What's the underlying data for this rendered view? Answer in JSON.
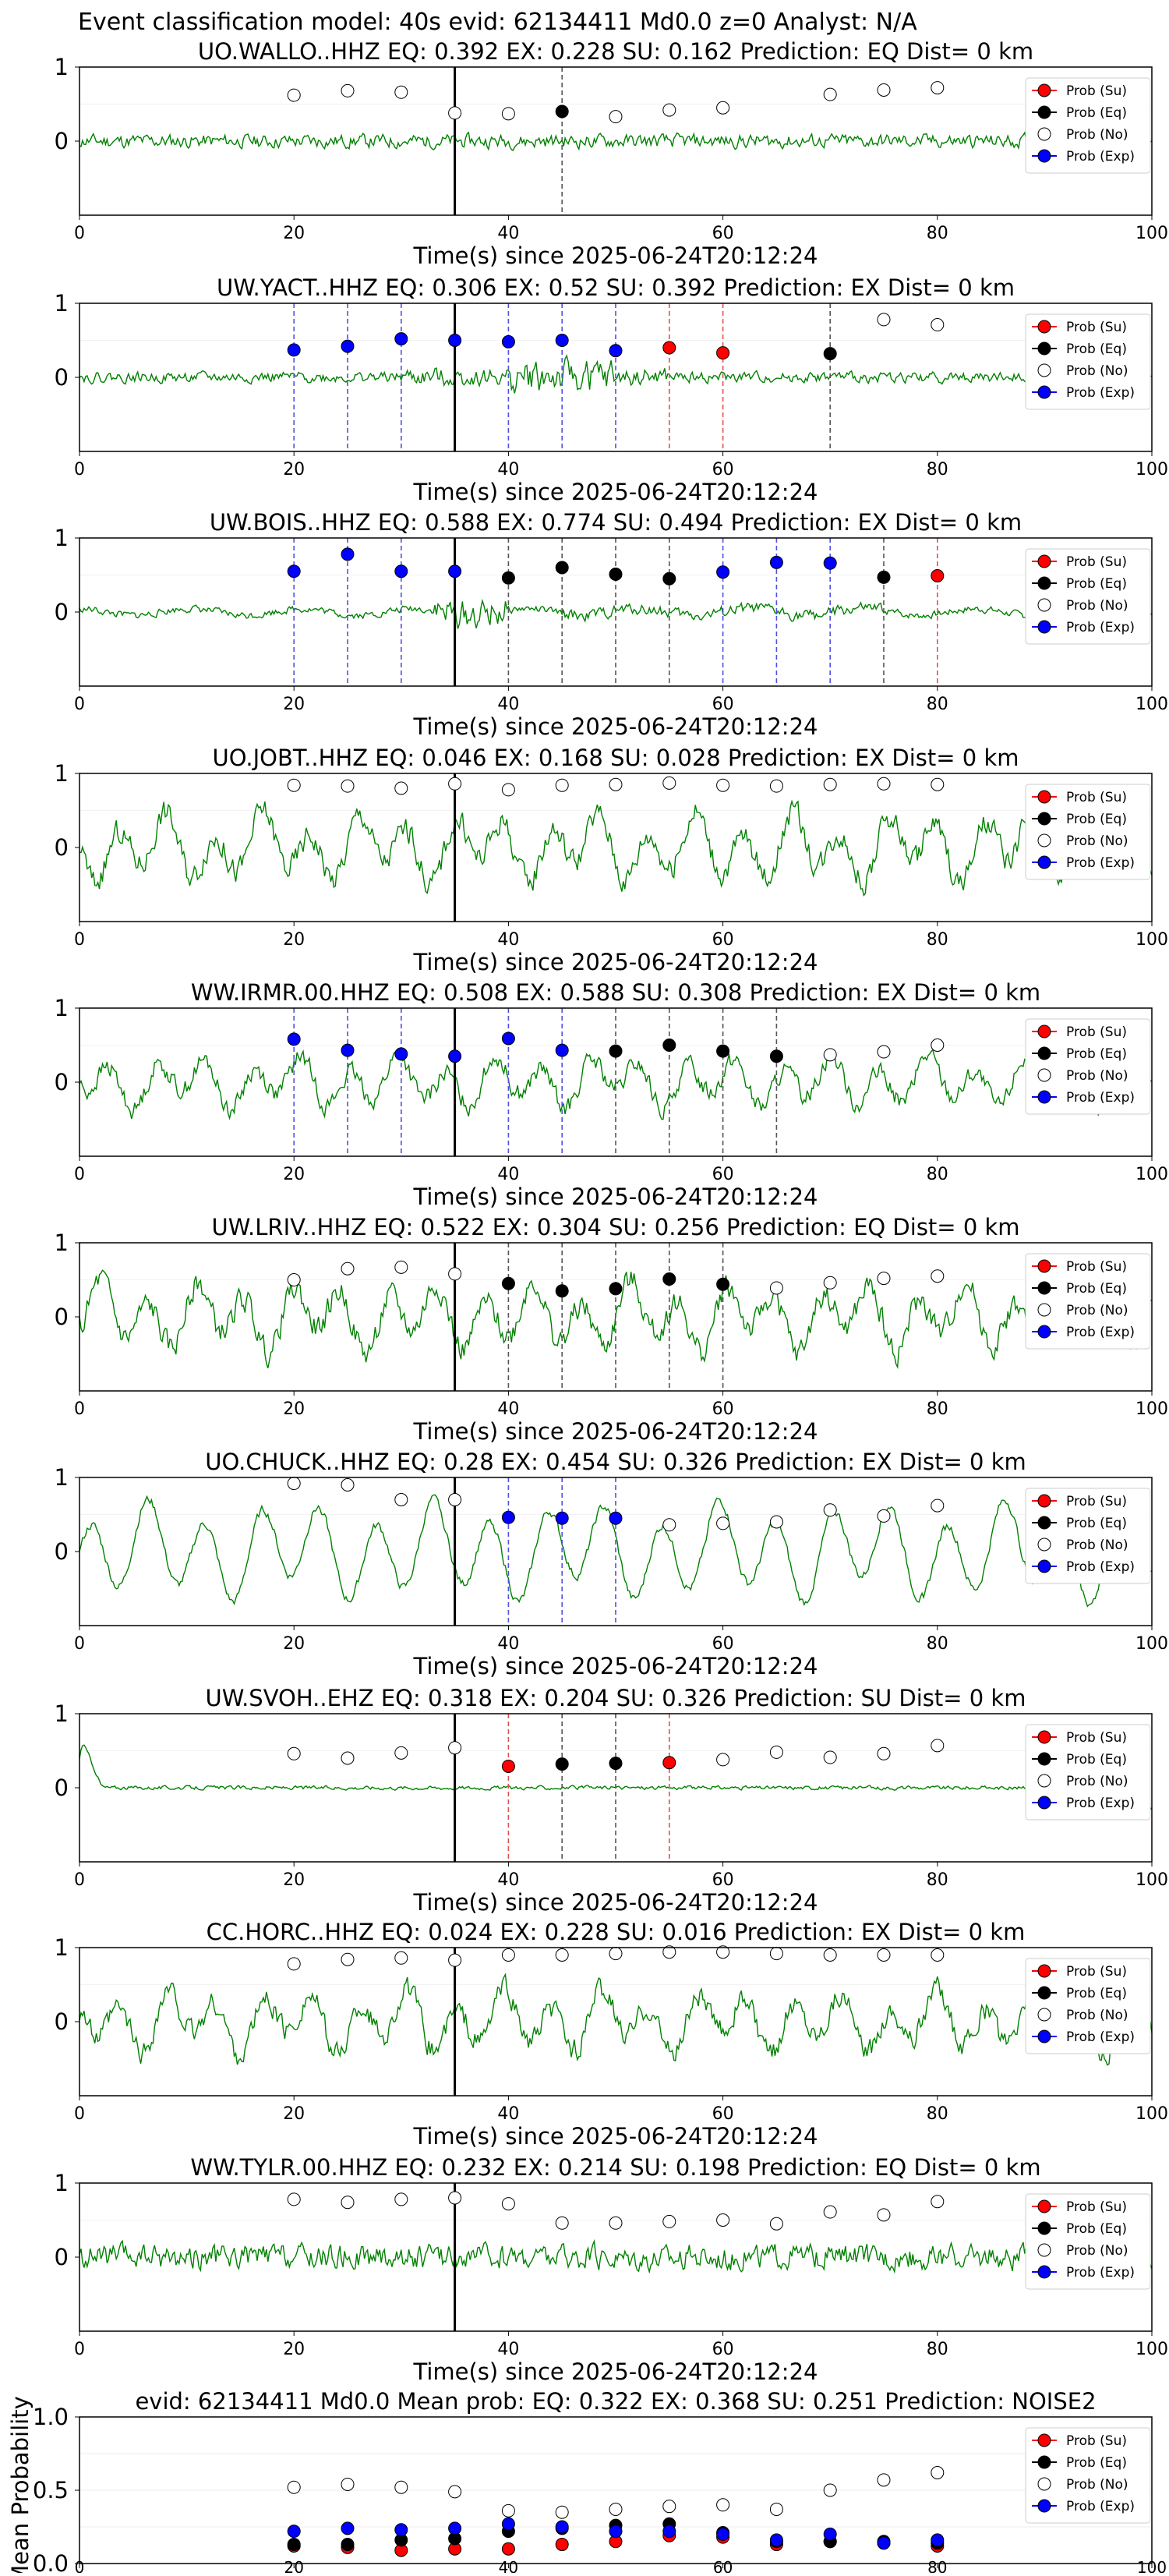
{
  "figure_title": "Event classification model: 40s evid: 62134411 Md0.0 z=0 Analyst: N/A",
  "legend": [
    "Prob (Su)",
    "Prob (Eq)",
    "Prob (No)",
    "Prob (Exp)"
  ],
  "colors": {
    "trace": "#008000",
    "su": "#ff0000",
    "eq": "#000000",
    "no": "#ffffff",
    "exp": "#0000ff",
    "legend_bg": "#ffffff"
  },
  "chart_data": [
    {
      "type": "line",
      "title": "UO.WALLO..HHZ   EQ: 0.392  EX: 0.228  SU: 0.162   Prediction: EQ    Dist= 0 km",
      "xlabel": "Time(s) since 2025-06-24T20:12:24",
      "xlim": [
        0,
        100
      ],
      "xticks": [
        0,
        20,
        40,
        60,
        80,
        100
      ],
      "yticks": [
        0,
        1
      ],
      "origin_line": 35,
      "trace": {
        "style": "noise",
        "amp": 0.18,
        "seed": 11
      },
      "points": [
        {
          "x": 20,
          "y": 0.62,
          "c": "no"
        },
        {
          "x": 25,
          "y": 0.68,
          "c": "no"
        },
        {
          "x": 30,
          "y": 0.66,
          "c": "no"
        },
        {
          "x": 35,
          "y": 0.38,
          "c": "no"
        },
        {
          "x": 40,
          "y": 0.37,
          "c": "no"
        },
        {
          "x": 45,
          "y": 0.4,
          "c": "eq"
        },
        {
          "x": 50,
          "y": 0.33,
          "c": "no"
        },
        {
          "x": 55,
          "y": 0.42,
          "c": "no"
        },
        {
          "x": 60,
          "y": 0.45,
          "c": "no"
        },
        {
          "x": 70,
          "y": 0.63,
          "c": "no"
        },
        {
          "x": 75,
          "y": 0.69,
          "c": "no"
        },
        {
          "x": 80,
          "y": 0.72,
          "c": "no"
        }
      ]
    },
    {
      "type": "line",
      "title": "UW.YACT..HHZ   EQ: 0.306  EX: 0.52  SU: 0.392   Prediction: EX    Dist= 0 km",
      "xlabel": "Time(s) since 2025-06-24T20:12:24",
      "xlim": [
        0,
        100
      ],
      "xticks": [
        0,
        20,
        40,
        60,
        80,
        100
      ],
      "yticks": [
        0,
        1
      ],
      "origin_line": 35,
      "trace": {
        "style": "burst",
        "amp": 0.22,
        "seed": 22
      },
      "points": [
        {
          "x": 20,
          "y": 0.37,
          "c": "exp"
        },
        {
          "x": 25,
          "y": 0.42,
          "c": "exp"
        },
        {
          "x": 30,
          "y": 0.52,
          "c": "exp"
        },
        {
          "x": 35,
          "y": 0.5,
          "c": "exp"
        },
        {
          "x": 40,
          "y": 0.48,
          "c": "exp"
        },
        {
          "x": 45,
          "y": 0.5,
          "c": "exp"
        },
        {
          "x": 50,
          "y": 0.36,
          "c": "exp"
        },
        {
          "x": 55,
          "y": 0.4,
          "c": "su"
        },
        {
          "x": 60,
          "y": 0.33,
          "c": "su"
        },
        {
          "x": 70,
          "y": 0.32,
          "c": "eq"
        },
        {
          "x": 75,
          "y": 0.78,
          "c": "no"
        },
        {
          "x": 80,
          "y": 0.71,
          "c": "no"
        }
      ]
    },
    {
      "type": "line",
      "title": "UW.BOIS..HHZ   EQ: 0.588  EX: 0.774  SU: 0.494   Prediction: EX    Dist= 0 km",
      "xlabel": "Time(s) since 2025-06-24T20:12:24",
      "xlim": [
        0,
        100
      ],
      "xticks": [
        0,
        20,
        40,
        60,
        80,
        100
      ],
      "yticks": [
        0,
        1
      ],
      "origin_line": 35,
      "trace": {
        "style": "quiet",
        "amp": 0.15,
        "seed": 33
      },
      "points": [
        {
          "x": 20,
          "y": 0.55,
          "c": "exp"
        },
        {
          "x": 25,
          "y": 0.78,
          "c": "exp"
        },
        {
          "x": 30,
          "y": 0.55,
          "c": "exp"
        },
        {
          "x": 35,
          "y": 0.55,
          "c": "exp"
        },
        {
          "x": 40,
          "y": 0.46,
          "c": "eq"
        },
        {
          "x": 45,
          "y": 0.6,
          "c": "eq"
        },
        {
          "x": 50,
          "y": 0.51,
          "c": "eq"
        },
        {
          "x": 55,
          "y": 0.45,
          "c": "eq"
        },
        {
          "x": 60,
          "y": 0.54,
          "c": "exp"
        },
        {
          "x": 65,
          "y": 0.67,
          "c": "exp"
        },
        {
          "x": 70,
          "y": 0.66,
          "c": "exp"
        },
        {
          "x": 75,
          "y": 0.47,
          "c": "eq"
        },
        {
          "x": 80,
          "y": 0.49,
          "c": "su"
        }
      ]
    },
    {
      "type": "line",
      "title": "UO.JOBT..HHZ   EQ: 0.046  EX: 0.168  SU: 0.028   Prediction: EX    Dist= 0 km",
      "xlabel": "Time(s) since 2025-06-24T20:12:24",
      "xlim": [
        0,
        100
      ],
      "xticks": [
        0,
        20,
        40,
        60,
        80,
        100
      ],
      "yticks": [
        0,
        1
      ],
      "origin_line": 35,
      "trace": {
        "style": "wave",
        "amp": 0.6,
        "seed": 44
      },
      "points": [
        {
          "x": 20,
          "y": 0.84,
          "c": "no"
        },
        {
          "x": 25,
          "y": 0.83,
          "c": "no"
        },
        {
          "x": 30,
          "y": 0.8,
          "c": "no"
        },
        {
          "x": 35,
          "y": 0.86,
          "c": "no"
        },
        {
          "x": 40,
          "y": 0.78,
          "c": "no"
        },
        {
          "x": 45,
          "y": 0.84,
          "c": "no"
        },
        {
          "x": 50,
          "y": 0.85,
          "c": "no"
        },
        {
          "x": 55,
          "y": 0.87,
          "c": "no"
        },
        {
          "x": 60,
          "y": 0.84,
          "c": "no"
        },
        {
          "x": 65,
          "y": 0.83,
          "c": "no"
        },
        {
          "x": 70,
          "y": 0.85,
          "c": "no"
        },
        {
          "x": 75,
          "y": 0.86,
          "c": "no"
        },
        {
          "x": 80,
          "y": 0.85,
          "c": "no"
        }
      ]
    },
    {
      "type": "line",
      "title": "WW.IRMR.00.HHZ   EQ: 0.508  EX: 0.588  SU: 0.308   Prediction: EX    Dist= 0 km",
      "xlabel": "Time(s) since 2025-06-24T20:12:24",
      "xlim": [
        0,
        100
      ],
      "xticks": [
        0,
        20,
        40,
        60,
        80,
        100
      ],
      "yticks": [
        0,
        1
      ],
      "origin_line": 35,
      "trace": {
        "style": "wave",
        "amp": 0.45,
        "seed": 55
      },
      "points": [
        {
          "x": 20,
          "y": 0.58,
          "c": "exp"
        },
        {
          "x": 25,
          "y": 0.43,
          "c": "exp"
        },
        {
          "x": 30,
          "y": 0.38,
          "c": "exp"
        },
        {
          "x": 35,
          "y": 0.35,
          "c": "exp"
        },
        {
          "x": 40,
          "y": 0.59,
          "c": "exp"
        },
        {
          "x": 45,
          "y": 0.43,
          "c": "exp"
        },
        {
          "x": 50,
          "y": 0.42,
          "c": "eq"
        },
        {
          "x": 55,
          "y": 0.5,
          "c": "eq"
        },
        {
          "x": 60,
          "y": 0.42,
          "c": "eq"
        },
        {
          "x": 65,
          "y": 0.35,
          "c": "eq"
        },
        {
          "x": 70,
          "y": 0.37,
          "c": "no"
        },
        {
          "x": 75,
          "y": 0.41,
          "c": "no"
        },
        {
          "x": 80,
          "y": 0.5,
          "c": "no"
        }
      ]
    },
    {
      "type": "line",
      "title": "UW.LRIV..HHZ   EQ: 0.522  EX: 0.304  SU: 0.256   Prediction: EQ    Dist= 0 km",
      "xlabel": "Time(s) since 2025-06-24T20:12:24",
      "xlim": [
        0,
        100
      ],
      "xticks": [
        0,
        20,
        40,
        60,
        80,
        100
      ],
      "yticks": [
        0,
        1
      ],
      "origin_line": 35,
      "trace": {
        "style": "wave",
        "amp": 0.6,
        "seed": 66
      },
      "points": [
        {
          "x": 20,
          "y": 0.5,
          "c": "no"
        },
        {
          "x": 25,
          "y": 0.65,
          "c": "no"
        },
        {
          "x": 30,
          "y": 0.67,
          "c": "no"
        },
        {
          "x": 35,
          "y": 0.58,
          "c": "no"
        },
        {
          "x": 40,
          "y": 0.45,
          "c": "eq"
        },
        {
          "x": 45,
          "y": 0.35,
          "c": "eq"
        },
        {
          "x": 50,
          "y": 0.38,
          "c": "eq"
        },
        {
          "x": 55,
          "y": 0.51,
          "c": "eq"
        },
        {
          "x": 60,
          "y": 0.44,
          "c": "eq"
        },
        {
          "x": 65,
          "y": 0.39,
          "c": "no"
        },
        {
          "x": 70,
          "y": 0.46,
          "c": "no"
        },
        {
          "x": 75,
          "y": 0.52,
          "c": "no"
        },
        {
          "x": 80,
          "y": 0.55,
          "c": "no"
        }
      ]
    },
    {
      "type": "line",
      "title": "UO.CHUCK..HHZ   EQ: 0.28  EX: 0.454  SU: 0.326   Prediction: EX    Dist= 0 km",
      "xlabel": "Time(s) since 2025-06-24T20:12:24",
      "xlim": [
        0,
        100
      ],
      "xticks": [
        0,
        20,
        40,
        60,
        80,
        100
      ],
      "yticks": [
        0,
        1
      ],
      "origin_line": 35,
      "trace": {
        "style": "smooth",
        "amp": 0.75,
        "seed": 77
      },
      "points": [
        {
          "x": 20,
          "y": 0.92,
          "c": "no"
        },
        {
          "x": 25,
          "y": 0.9,
          "c": "no"
        },
        {
          "x": 30,
          "y": 0.7,
          "c": "no"
        },
        {
          "x": 35,
          "y": 0.7,
          "c": "no"
        },
        {
          "x": 40,
          "y": 0.46,
          "c": "exp"
        },
        {
          "x": 45,
          "y": 0.45,
          "c": "exp"
        },
        {
          "x": 50,
          "y": 0.45,
          "c": "exp"
        },
        {
          "x": 55,
          "y": 0.36,
          "c": "no"
        },
        {
          "x": 60,
          "y": 0.38,
          "c": "no"
        },
        {
          "x": 65,
          "y": 0.4,
          "c": "no"
        },
        {
          "x": 70,
          "y": 0.56,
          "c": "no"
        },
        {
          "x": 75,
          "y": 0.48,
          "c": "no"
        },
        {
          "x": 80,
          "y": 0.62,
          "c": "no"
        }
      ]
    },
    {
      "type": "line",
      "title": "UW.SVOH..EHZ   EQ: 0.318  EX: 0.204  SU: 0.326   Prediction: SU    Dist= 0 km",
      "xlabel": "Time(s) since 2025-06-24T20:12:24",
      "xlim": [
        0,
        100
      ],
      "xticks": [
        0,
        20,
        40,
        60,
        80,
        100
      ],
      "yticks": [
        0,
        1
      ],
      "origin_line": 35,
      "trace": {
        "style": "decay",
        "amp": 0.08,
        "seed": 88
      },
      "points": [
        {
          "x": 20,
          "y": 0.46,
          "c": "no"
        },
        {
          "x": 25,
          "y": 0.4,
          "c": "no"
        },
        {
          "x": 30,
          "y": 0.47,
          "c": "no"
        },
        {
          "x": 35,
          "y": 0.54,
          "c": "no"
        },
        {
          "x": 40,
          "y": 0.29,
          "c": "su"
        },
        {
          "x": 45,
          "y": 0.32,
          "c": "eq"
        },
        {
          "x": 50,
          "y": 0.33,
          "c": "eq"
        },
        {
          "x": 55,
          "y": 0.34,
          "c": "su"
        },
        {
          "x": 60,
          "y": 0.38,
          "c": "no"
        },
        {
          "x": 65,
          "y": 0.48,
          "c": "no"
        },
        {
          "x": 70,
          "y": 0.41,
          "c": "no"
        },
        {
          "x": 75,
          "y": 0.46,
          "c": "no"
        },
        {
          "x": 80,
          "y": 0.57,
          "c": "no"
        }
      ]
    },
    {
      "type": "line",
      "title": "CC.HORC..HHZ   EQ: 0.024  EX: 0.228  SU: 0.016   Prediction: EX    Dist= 0 km",
      "xlabel": "Time(s) since 2025-06-24T20:12:24",
      "xlim": [
        0,
        100
      ],
      "xticks": [
        0,
        20,
        40,
        60,
        80,
        100
      ],
      "yticks": [
        0,
        1
      ],
      "origin_line": 35,
      "trace": {
        "style": "wave",
        "amp": 0.55,
        "seed": 99
      },
      "points": [
        {
          "x": 20,
          "y": 0.78,
          "c": "no"
        },
        {
          "x": 25,
          "y": 0.84,
          "c": "no"
        },
        {
          "x": 30,
          "y": 0.86,
          "c": "no"
        },
        {
          "x": 35,
          "y": 0.83,
          "c": "no"
        },
        {
          "x": 40,
          "y": 0.9,
          "c": "no"
        },
        {
          "x": 45,
          "y": 0.9,
          "c": "no"
        },
        {
          "x": 50,
          "y": 0.92,
          "c": "no"
        },
        {
          "x": 55,
          "y": 0.94,
          "c": "no"
        },
        {
          "x": 60,
          "y": 0.94,
          "c": "no"
        },
        {
          "x": 65,
          "y": 0.92,
          "c": "no"
        },
        {
          "x": 70,
          "y": 0.9,
          "c": "no"
        },
        {
          "x": 75,
          "y": 0.9,
          "c": "no"
        },
        {
          "x": 80,
          "y": 0.9,
          "c": "no"
        }
      ]
    },
    {
      "type": "line",
      "title": "WW.TYLR.00.HHZ   EQ: 0.232  EX: 0.214  SU: 0.198   Prediction: EQ    Dist= 0 km",
      "xlabel": "Time(s) since 2025-06-24T20:12:24",
      "xlim": [
        0,
        100
      ],
      "xticks": [
        0,
        20,
        40,
        60,
        80,
        100
      ],
      "yticks": [
        0,
        1
      ],
      "origin_line": 35,
      "trace": {
        "style": "noise",
        "amp": 0.32,
        "seed": 111
      },
      "points": [
        {
          "x": 20,
          "y": 0.78,
          "c": "no"
        },
        {
          "x": 25,
          "y": 0.74,
          "c": "no"
        },
        {
          "x": 30,
          "y": 0.78,
          "c": "no"
        },
        {
          "x": 35,
          "y": 0.8,
          "c": "no"
        },
        {
          "x": 40,
          "y": 0.72,
          "c": "no"
        },
        {
          "x": 45,
          "y": 0.46,
          "c": "no"
        },
        {
          "x": 50,
          "y": 0.46,
          "c": "no"
        },
        {
          "x": 55,
          "y": 0.48,
          "c": "no"
        },
        {
          "x": 60,
          "y": 0.5,
          "c": "no"
        },
        {
          "x": 65,
          "y": 0.45,
          "c": "no"
        },
        {
          "x": 70,
          "y": 0.61,
          "c": "no"
        },
        {
          "x": 75,
          "y": 0.57,
          "c": "no"
        },
        {
          "x": 80,
          "y": 0.75,
          "c": "no"
        }
      ]
    },
    {
      "type": "scatter",
      "title": "evid: 62134411  Md0.0   Mean prob:   EQ: 0.322  EX: 0.368  SU: 0.251   Prediction: NOISE2",
      "xlabel": "",
      "ylabel": "Mean Probability",
      "xlim": [
        0,
        100
      ],
      "ylim": [
        0,
        1
      ],
      "xticks": [
        0,
        20,
        40,
        60,
        80,
        100
      ],
      "yticks": [
        0.0,
        0.5,
        1.0
      ],
      "ytick_labels": [
        "0.0",
        "0.5",
        "1.0"
      ],
      "x": [
        20,
        25,
        30,
        35,
        40,
        45,
        50,
        55,
        60,
        65,
        70,
        75,
        80
      ],
      "series": [
        {
          "name": "Prob (Su)",
          "color": "su",
          "values": [
            0.12,
            0.11,
            0.09,
            0.1,
            0.1,
            0.13,
            0.15,
            0.19,
            0.18,
            0.13,
            0.15,
            0.14,
            0.12
          ]
        },
        {
          "name": "Prob (Eq)",
          "color": "eq",
          "values": [
            0.13,
            0.13,
            0.16,
            0.17,
            0.22,
            0.24,
            0.26,
            0.27,
            0.21,
            0.15,
            0.15,
            0.15,
            0.14
          ]
        },
        {
          "name": "Prob (No)",
          "color": "no",
          "values": [
            0.52,
            0.54,
            0.52,
            0.49,
            0.36,
            0.35,
            0.37,
            0.39,
            0.4,
            0.37,
            0.5,
            0.57,
            0.62
          ]
        },
        {
          "name": "Prob (Exp)",
          "color": "exp",
          "values": [
            0.22,
            0.24,
            0.23,
            0.24,
            0.27,
            0.25,
            0.22,
            0.22,
            0.2,
            0.16,
            0.2,
            0.14,
            0.16
          ]
        }
      ]
    }
  ]
}
